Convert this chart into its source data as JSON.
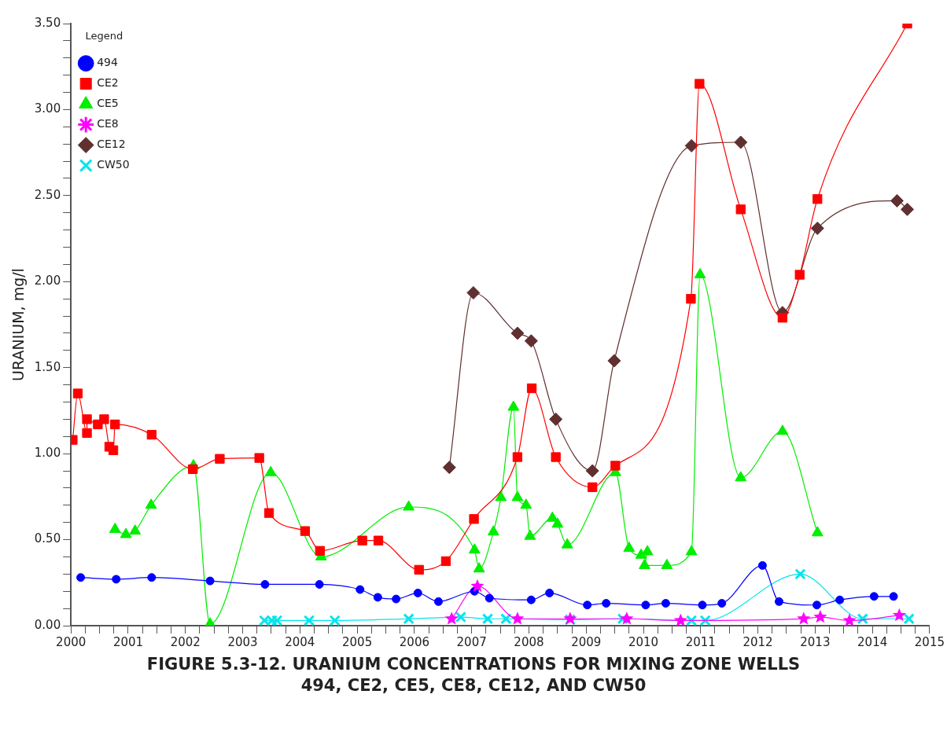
{
  "chart_data": {
    "type": "line",
    "title": "FIGURE 5.3-12.  URANIUM CONCENTRATIONS FOR MIXING ZONE WELLS\n494, CE2, CE5, CE8, CE12, AND CW50",
    "ylabel": "URANIUM, mg/l",
    "legend": "top left",
    "legend_title": "Legend",
    "grid": false,
    "line_style": "solid",
    "xlim": [
      2000,
      2015
    ],
    "xticks": [
      2000,
      {
        "value": 2000.25,
        "label": null
      },
      {
        "value": 2000.5,
        "label": null
      },
      {
        "value": 2000.75,
        "label": null
      },
      2001,
      {
        "value": 2001.25,
        "label": null
      },
      {
        "value": 2001.5,
        "label": null
      },
      {
        "value": 2001.75,
        "label": null
      },
      2002,
      {
        "value": 2002.25,
        "label": null
      },
      {
        "value": 2002.5,
        "label": null
      },
      {
        "value": 2002.75,
        "label": null
      },
      2003,
      {
        "value": 2003.25,
        "label": null
      },
      {
        "value": 2003.5,
        "label": null
      },
      {
        "value": 2003.75,
        "label": null
      },
      2004,
      {
        "value": 2004.25,
        "label": null
      },
      {
        "value": 2004.5,
        "label": null
      },
      {
        "value": 2004.75,
        "label": null
      },
      2005,
      {
        "value": 2005.25,
        "label": null
      },
      {
        "value": 2005.5,
        "label": null
      },
      {
        "value": 2005.75,
        "label": null
      },
      2006,
      {
        "value": 2006.25,
        "label": null
      },
      {
        "value": 2006.5,
        "label": null
      },
      {
        "value": 2006.75,
        "label": null
      },
      2007,
      {
        "value": 2007.25,
        "label": null
      },
      {
        "value": 2007.5,
        "label": null
      },
      {
        "value": 2007.75,
        "label": null
      },
      2008,
      {
        "value": 2008.25,
        "label": null
      },
      {
        "value": 2008.5,
        "label": null
      },
      {
        "value": 2008.75,
        "label": null
      },
      2009,
      {
        "value": 2009.25,
        "label": null
      },
      {
        "value": 2009.5,
        "label": null
      },
      {
        "value": 2009.75,
        "label": null
      },
      2010,
      {
        "value": 2010.25,
        "label": null
      },
      {
        "value": 2010.5,
        "label": null
      },
      {
        "value": 2010.75,
        "label": null
      },
      2011,
      {
        "value": 2011.25,
        "label": null
      },
      {
        "value": 2011.5,
        "label": null
      },
      {
        "value": 2011.75,
        "label": null
      },
      2012,
      {
        "value": 2012.25,
        "label": null
      },
      {
        "value": 2012.5,
        "label": null
      },
      {
        "value": 2012.75,
        "label": null
      },
      2013,
      {
        "value": 2013.25,
        "label": null
      },
      {
        "value": 2013.5,
        "label": null
      },
      {
        "value": 2013.75,
        "label": null
      },
      2014,
      {
        "value": 2014.25,
        "label": null
      },
      {
        "value": 2014.5,
        "label": null
      },
      {
        "value": 2014.75,
        "label": null
      },
      2015
    ],
    "ylim": [
      0,
      3.5
    ],
    "yticks": [
      {
        "value": 0,
        "label": "0.00"
      },
      {
        "value": 0.1,
        "label": null
      },
      {
        "value": 0.2,
        "label": null
      },
      {
        "value": 0.3,
        "label": null
      },
      {
        "value": 0.4,
        "label": null
      },
      {
        "value": 0.5,
        "label": "0.50"
      },
      {
        "value": 0.6,
        "label": null
      },
      {
        "value": 0.7,
        "label": null
      },
      {
        "value": 0.8,
        "label": null
      },
      {
        "value": 0.9,
        "label": null
      },
      {
        "value": 1,
        "label": "1.00"
      },
      {
        "value": 1.1,
        "label": null
      },
      {
        "value": 1.2,
        "label": null
      },
      {
        "value": 1.3,
        "label": null
      },
      {
        "value": 1.4,
        "label": null
      },
      {
        "value": 1.5,
        "label": "1.50"
      },
      {
        "value": 1.6,
        "label": null
      },
      {
        "value": 1.7,
        "label": null
      },
      {
        "value": 1.8,
        "label": null
      },
      {
        "value": 1.9,
        "label": null
      },
      {
        "value": 2,
        "label": "2.00"
      },
      {
        "value": 2.1,
        "label": null
      },
      {
        "value": 2.2,
        "label": null
      },
      {
        "value": 2.3,
        "label": null
      },
      {
        "value": 2.4,
        "label": null
      },
      {
        "value": 2.5,
        "label": "2.50"
      },
      {
        "value": 2.6,
        "label": null
      },
      {
        "value": 2.7,
        "label": null
      },
      {
        "value": 2.8,
        "label": null
      },
      {
        "value": 2.9,
        "label": null
      },
      {
        "value": 3,
        "label": "3.00"
      },
      {
        "value": 3.1,
        "label": null
      },
      {
        "value": 3.2,
        "label": null
      },
      {
        "value": 3.3,
        "label": null
      },
      {
        "value": 3.4,
        "label": null
      },
      {
        "value": 3.5,
        "label": "3.50"
      }
    ],
    "series": [
      {
        "name": "494",
        "color": "#0000ff",
        "marker": "circle",
        "x": [
          2000.17,
          2000.79,
          2001.41,
          2002.43,
          2003.39,
          2004.34,
          2005.05,
          2005.36,
          2005.68,
          2006.06,
          2006.42,
          2007.05,
          2007.31,
          2008.04,
          2008.36,
          2009.02,
          2009.35,
          2010.04,
          2010.39,
          2011.03,
          2011.37,
          2012.08,
          2012.37,
          2013.03,
          2013.43,
          2014.03,
          2014.37
        ],
        "values": [
          0.28,
          0.27,
          0.28,
          0.26,
          0.24,
          0.24,
          0.21,
          0.165,
          0.155,
          0.19,
          0.14,
          0.2,
          0.16,
          0.15,
          0.19,
          0.12,
          0.13,
          0.12,
          0.13,
          0.12,
          0.13,
          0.35,
          0.14,
          0.12,
          0.15,
          0.17,
          0.17
        ]
      },
      {
        "name": "CE2",
        "color": "#ff0000",
        "marker": "square",
        "x": [
          2000.03,
          2000.12,
          2000.28,
          2000.28,
          2000.47,
          2000.58,
          2000.67,
          2000.74,
          2000.77,
          2001.41,
          2002.13,
          2002.6,
          2003.29,
          2003.46,
          2004.09,
          2004.35,
          2005.09,
          2005.37,
          2006.08,
          2006.55,
          2007.04,
          2007.8,
          2008.05,
          2008.47,
          2009.11,
          2009.51,
          2010.83,
          2010.98,
          2011.7,
          2012.43,
          2012.73,
          2013.04,
          2014.61
        ],
        "values": [
          1.08,
          1.35,
          1.12,
          1.2,
          1.17,
          1.2,
          1.04,
          1.02,
          1.17,
          1.11,
          0.91,
          0.97,
          0.975,
          0.655,
          0.55,
          0.435,
          0.495,
          0.495,
          0.325,
          0.375,
          0.62,
          0.98,
          1.38,
          0.98,
          0.805,
          0.93,
          1.9,
          3.15,
          2.42,
          1.79,
          2.04,
          2.48,
          3.5
        ]
      },
      {
        "name": "CE5",
        "color": "#00ee00",
        "marker": "triangle",
        "x": [
          2000.77,
          2000.96,
          2001.12,
          2001.4,
          2002.14,
          2002.43,
          2003.49,
          2004.37,
          2005.9,
          2007.05,
          2007.13,
          2007.38,
          2007.51,
          2007.73,
          2007.8,
          2007.95,
          2008.02,
          2008.41,
          2008.5,
          2008.67,
          2009.51,
          2009.75,
          2009.96,
          2010.07,
          2010.02,
          2010.41,
          2010.84,
          2010.99,
          2011.7,
          2012.43,
          2013.04
        ],
        "values": [
          0.56,
          0.53,
          0.55,
          0.7,
          0.93,
          0.01,
          0.89,
          0.4,
          0.69,
          0.44,
          0.33,
          0.545,
          0.745,
          1.27,
          0.745,
          0.7,
          0.52,
          0.625,
          0.59,
          0.47,
          0.89,
          0.45,
          0.41,
          0.43,
          0.35,
          0.35,
          0.43,
          2.04,
          0.86,
          1.13,
          0.54
        ]
      },
      {
        "name": "CE8",
        "color": "#ff00ff",
        "marker": "star",
        "x": [
          2006.65,
          2007.1,
          2007.8,
          2008.72,
          2009.71,
          2010.65,
          2012.8,
          2013.09,
          2013.6,
          2014.47
        ],
        "values": [
          0.04,
          0.23,
          0.04,
          0.04,
          0.04,
          0.03,
          0.04,
          0.05,
          0.03,
          0.06
        ]
      },
      {
        "name": "CE12",
        "color": "#603030",
        "marker": "diamond",
        "x": [
          2006.61,
          2007.03,
          2007.8,
          2008.04,
          2008.47,
          2009.11,
          2009.49,
          2010.84,
          2011.7,
          2012.43,
          2013.04,
          2014.43,
          2014.61
        ],
        "values": [
          0.92,
          1.935,
          1.7,
          1.655,
          1.2,
          0.9,
          1.54,
          2.79,
          2.81,
          1.82,
          2.31,
          2.47,
          2.42
        ]
      },
      {
        "name": "CW50",
        "color": "#00e5ee",
        "marker": "cross",
        "x": [
          2003.38,
          2003.51,
          2003.6,
          2004.16,
          2004.61,
          2005.9,
          2006.81,
          2007.28,
          2007.6,
          2008.72,
          2009.64,
          2010.84,
          2011.08,
          2012.74,
          2013.83,
          2014.64
        ],
        "values": [
          0.03,
          0.03,
          0.03,
          0.03,
          0.03,
          0.04,
          0.05,
          0.04,
          0.04,
          0.035,
          0.04,
          0.03,
          0.03,
          0.3,
          0.04,
          0.04
        ]
      }
    ]
  }
}
